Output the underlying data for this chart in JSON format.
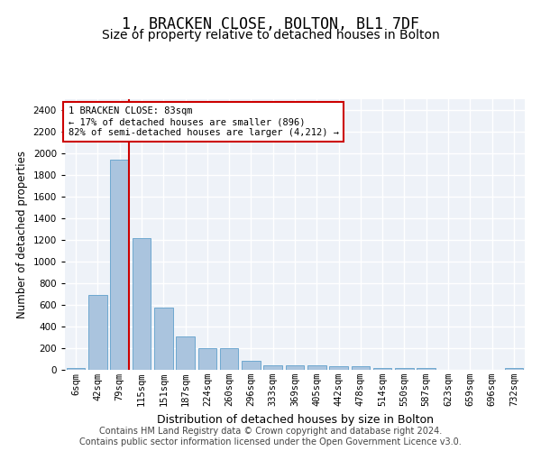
{
  "title_line1": "1, BRACKEN CLOSE, BOLTON, BL1 7DF",
  "title_line2": "Size of property relative to detached houses in Bolton",
  "xlabel": "Distribution of detached houses by size in Bolton",
  "ylabel": "Number of detached properties",
  "categories": [
    "6sqm",
    "42sqm",
    "79sqm",
    "115sqm",
    "151sqm",
    "187sqm",
    "224sqm",
    "260sqm",
    "296sqm",
    "333sqm",
    "369sqm",
    "405sqm",
    "442sqm",
    "478sqm",
    "514sqm",
    "550sqm",
    "587sqm",
    "623sqm",
    "659sqm",
    "696sqm",
    "732sqm"
  ],
  "values": [
    15,
    695,
    1940,
    1220,
    575,
    305,
    200,
    200,
    80,
    45,
    40,
    40,
    30,
    30,
    20,
    20,
    15,
    0,
    0,
    0,
    15
  ],
  "bar_color": "#aac4de",
  "bar_edge_color": "#6fa8d0",
  "vline_x_idx": 2,
  "vline_color": "#cc0000",
  "annotation_text": "1 BRACKEN CLOSE: 83sqm\n← 17% of detached houses are smaller (896)\n82% of semi-detached houses are larger (4,212) →",
  "annotation_box_color": "#cc0000",
  "ylim": [
    0,
    2500
  ],
  "yticks": [
    0,
    200,
    400,
    600,
    800,
    1000,
    1200,
    1400,
    1600,
    1800,
    2000,
    2200,
    2400
  ],
  "bg_color": "#eef2f8",
  "grid_color": "#ffffff",
  "title1_fontsize": 12,
  "title2_fontsize": 10,
  "xlabel_fontsize": 9,
  "ylabel_fontsize": 8.5,
  "tick_fontsize": 7.5,
  "annotation_fontsize": 7.5,
  "footer_fontsize": 7,
  "footer_line1": "Contains HM Land Registry data © Crown copyright and database right 2024.",
  "footer_line2": "Contains public sector information licensed under the Open Government Licence v3.0."
}
